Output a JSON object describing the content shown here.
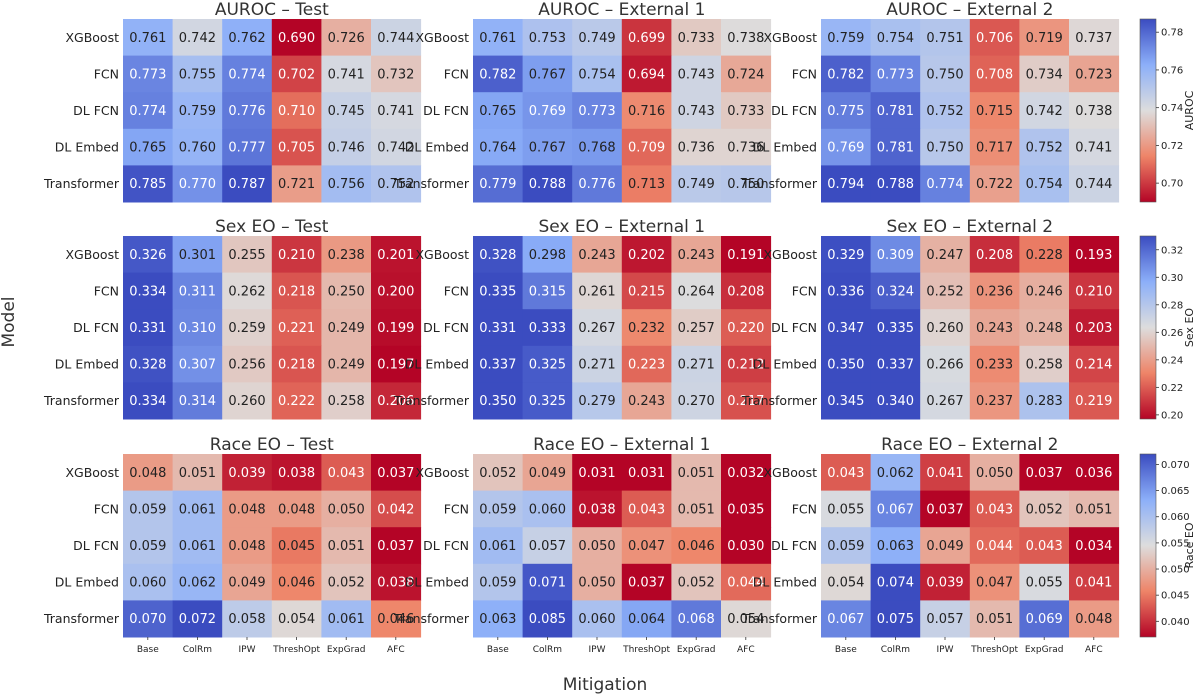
{
  "figure": {
    "xlabel": "Mitigation",
    "ylabel": "Model"
  },
  "chart_data": {
    "type": "heatmap",
    "rows": [
      "XGBoost",
      "FCN",
      "DL FCN",
      "DL Embed",
      "Transformer"
    ],
    "columns": [
      "Base",
      "ColRm",
      "IPW",
      "ThreshOpt",
      "ExpGrad",
      "AFC"
    ],
    "metrics": [
      {
        "name": "AUROC",
        "colorbar_label": "AUROC",
        "range": [
          0.69,
          0.787
        ],
        "ticks": [
          "0.78",
          "0.76",
          "0.74",
          "0.72",
          "0.70"
        ],
        "tick_values": [
          0.78,
          0.76,
          0.74,
          0.72,
          0.7
        ],
        "panels": [
          {
            "title": "AUROC – Test",
            "values": [
              [
                "0.761",
                "0.742",
                "0.762",
                "0.690",
                "0.726",
                "0.744"
              ],
              [
                "0.773",
                "0.755",
                "0.774",
                "0.702",
                "0.741",
                "0.732"
              ],
              [
                "0.774",
                "0.759",
                "0.776",
                "0.710",
                "0.745",
                "0.741"
              ],
              [
                "0.765",
                "0.760",
                "0.777",
                "0.705",
                "0.746",
                "0.742"
              ],
              [
                "0.785",
                "0.770",
                "0.787",
                "0.721",
                "0.756",
                "0.752"
              ]
            ]
          },
          {
            "title": "AUROC – External 1",
            "values": [
              [
                "0.761",
                "0.753",
                "0.749",
                "0.699",
                "0.733",
                "0.738"
              ],
              [
                "0.782",
                "0.767",
                "0.754",
                "0.694",
                "0.743",
                "0.724"
              ],
              [
                "0.765",
                "0.769",
                "0.773",
                "0.716",
                "0.743",
                "0.733"
              ],
              [
                "0.764",
                "0.767",
                "0.768",
                "0.709",
                "0.736",
                "0.736"
              ],
              [
                "0.779",
                "0.788",
                "0.776",
                "0.713",
                "0.749",
                "0.750"
              ]
            ]
          },
          {
            "title": "AUROC – External 2",
            "values": [
              [
                "0.759",
                "0.754",
                "0.751",
                "0.706",
                "0.719",
                "0.737"
              ],
              [
                "0.782",
                "0.773",
                "0.750",
                "0.708",
                "0.734",
                "0.723"
              ],
              [
                "0.775",
                "0.781",
                "0.752",
                "0.715",
                "0.742",
                "0.738"
              ],
              [
                "0.769",
                "0.781",
                "0.750",
                "0.717",
                "0.752",
                "0.741"
              ],
              [
                "0.794",
                "0.788",
                "0.774",
                "0.722",
                "0.754",
                "0.744"
              ]
            ]
          }
        ]
      },
      {
        "name": "Sex EO",
        "colorbar_label": "Sex EO",
        "range": [
          0.197,
          0.33
        ],
        "ticks": [
          "0.32",
          "0.30",
          "0.28",
          "0.26",
          "0.24",
          "0.22",
          "0.20"
        ],
        "tick_values": [
          0.32,
          0.3,
          0.28,
          0.26,
          0.24,
          0.22,
          0.2
        ],
        "panels": [
          {
            "title": "Sex EO – Test",
            "values": [
              [
                "0.326",
                "0.301",
                "0.255",
                "0.210",
                "0.238",
                "0.201"
              ],
              [
                "0.334",
                "0.311",
                "0.262",
                "0.218",
                "0.250",
                "0.200"
              ],
              [
                "0.331",
                "0.310",
                "0.259",
                "0.221",
                "0.249",
                "0.199"
              ],
              [
                "0.328",
                "0.307",
                "0.256",
                "0.218",
                "0.249",
                "0.197"
              ],
              [
                "0.334",
                "0.314",
                "0.260",
                "0.222",
                "0.258",
                "0.206"
              ]
            ]
          },
          {
            "title": "Sex EO – External 1",
            "values": [
              [
                "0.328",
                "0.298",
                "0.243",
                "0.202",
                "0.243",
                "0.191"
              ],
              [
                "0.335",
                "0.315",
                "0.261",
                "0.215",
                "0.264",
                "0.208"
              ],
              [
                "0.331",
                "0.333",
                "0.267",
                "0.232",
                "0.257",
                "0.220"
              ],
              [
                "0.337",
                "0.325",
                "0.271",
                "0.223",
                "0.271",
                "0.212"
              ],
              [
                "0.350",
                "0.325",
                "0.279",
                "0.243",
                "0.270",
                "0.217"
              ]
            ]
          },
          {
            "title": "Sex EO – External 2",
            "values": [
              [
                "0.329",
                "0.309",
                "0.247",
                "0.208",
                "0.228",
                "0.193"
              ],
              [
                "0.336",
                "0.324",
                "0.252",
                "0.236",
                "0.246",
                "0.210"
              ],
              [
                "0.347",
                "0.335",
                "0.260",
                "0.243",
                "0.248",
                "0.203"
              ],
              [
                "0.350",
                "0.337",
                "0.266",
                "0.233",
                "0.258",
                "0.214"
              ],
              [
                "0.345",
                "0.340",
                "0.267",
                "0.237",
                "0.283",
                "0.219"
              ]
            ]
          }
        ]
      },
      {
        "name": "Race EO",
        "colorbar_label": "Race EO",
        "range": [
          0.037,
          0.072
        ],
        "ticks": [
          "0.070",
          "0.065",
          "0.060",
          "0.055",
          "0.050",
          "0.045",
          "0.040"
        ],
        "tick_values": [
          0.07,
          0.065,
          0.06,
          0.055,
          0.05,
          0.045,
          0.04
        ],
        "panels": [
          {
            "title": "Race EO – Test",
            "values": [
              [
                "0.048",
                "0.051",
                "0.039",
                "0.038",
                "0.043",
                "0.037"
              ],
              [
                "0.059",
                "0.061",
                "0.048",
                "0.048",
                "0.050",
                "0.042"
              ],
              [
                "0.059",
                "0.061",
                "0.048",
                "0.045",
                "0.051",
                "0.037"
              ],
              [
                "0.060",
                "0.062",
                "0.049",
                "0.046",
                "0.052",
                "0.038"
              ],
              [
                "0.070",
                "0.072",
                "0.058",
                "0.054",
                "0.061",
                "0.046"
              ]
            ]
          },
          {
            "title": "Race EO – External 1",
            "values": [
              [
                "0.052",
                "0.049",
                "0.031",
                "0.031",
                "0.051",
                "0.032"
              ],
              [
                "0.059",
                "0.060",
                "0.038",
                "0.043",
                "0.051",
                "0.035"
              ],
              [
                "0.061",
                "0.057",
                "0.050",
                "0.047",
                "0.046",
                "0.030"
              ],
              [
                "0.059",
                "0.071",
                "0.050",
                "0.037",
                "0.052",
                "0.044"
              ],
              [
                "0.063",
                "0.085",
                "0.060",
                "0.064",
                "0.068",
                "0.054"
              ]
            ]
          },
          {
            "title": "Race EO – External 2",
            "values": [
              [
                "0.043",
                "0.062",
                "0.041",
                "0.050",
                "0.037",
                "0.036"
              ],
              [
                "0.055",
                "0.067",
                "0.037",
                "0.043",
                "0.052",
                "0.051"
              ],
              [
                "0.059",
                "0.063",
                "0.049",
                "0.044",
                "0.043",
                "0.034"
              ],
              [
                "0.054",
                "0.074",
                "0.039",
                "0.047",
                "0.055",
                "0.041"
              ],
              [
                "0.067",
                "0.075",
                "0.057",
                "0.051",
                "0.069",
                "0.048"
              ]
            ]
          }
        ]
      }
    ]
  }
}
